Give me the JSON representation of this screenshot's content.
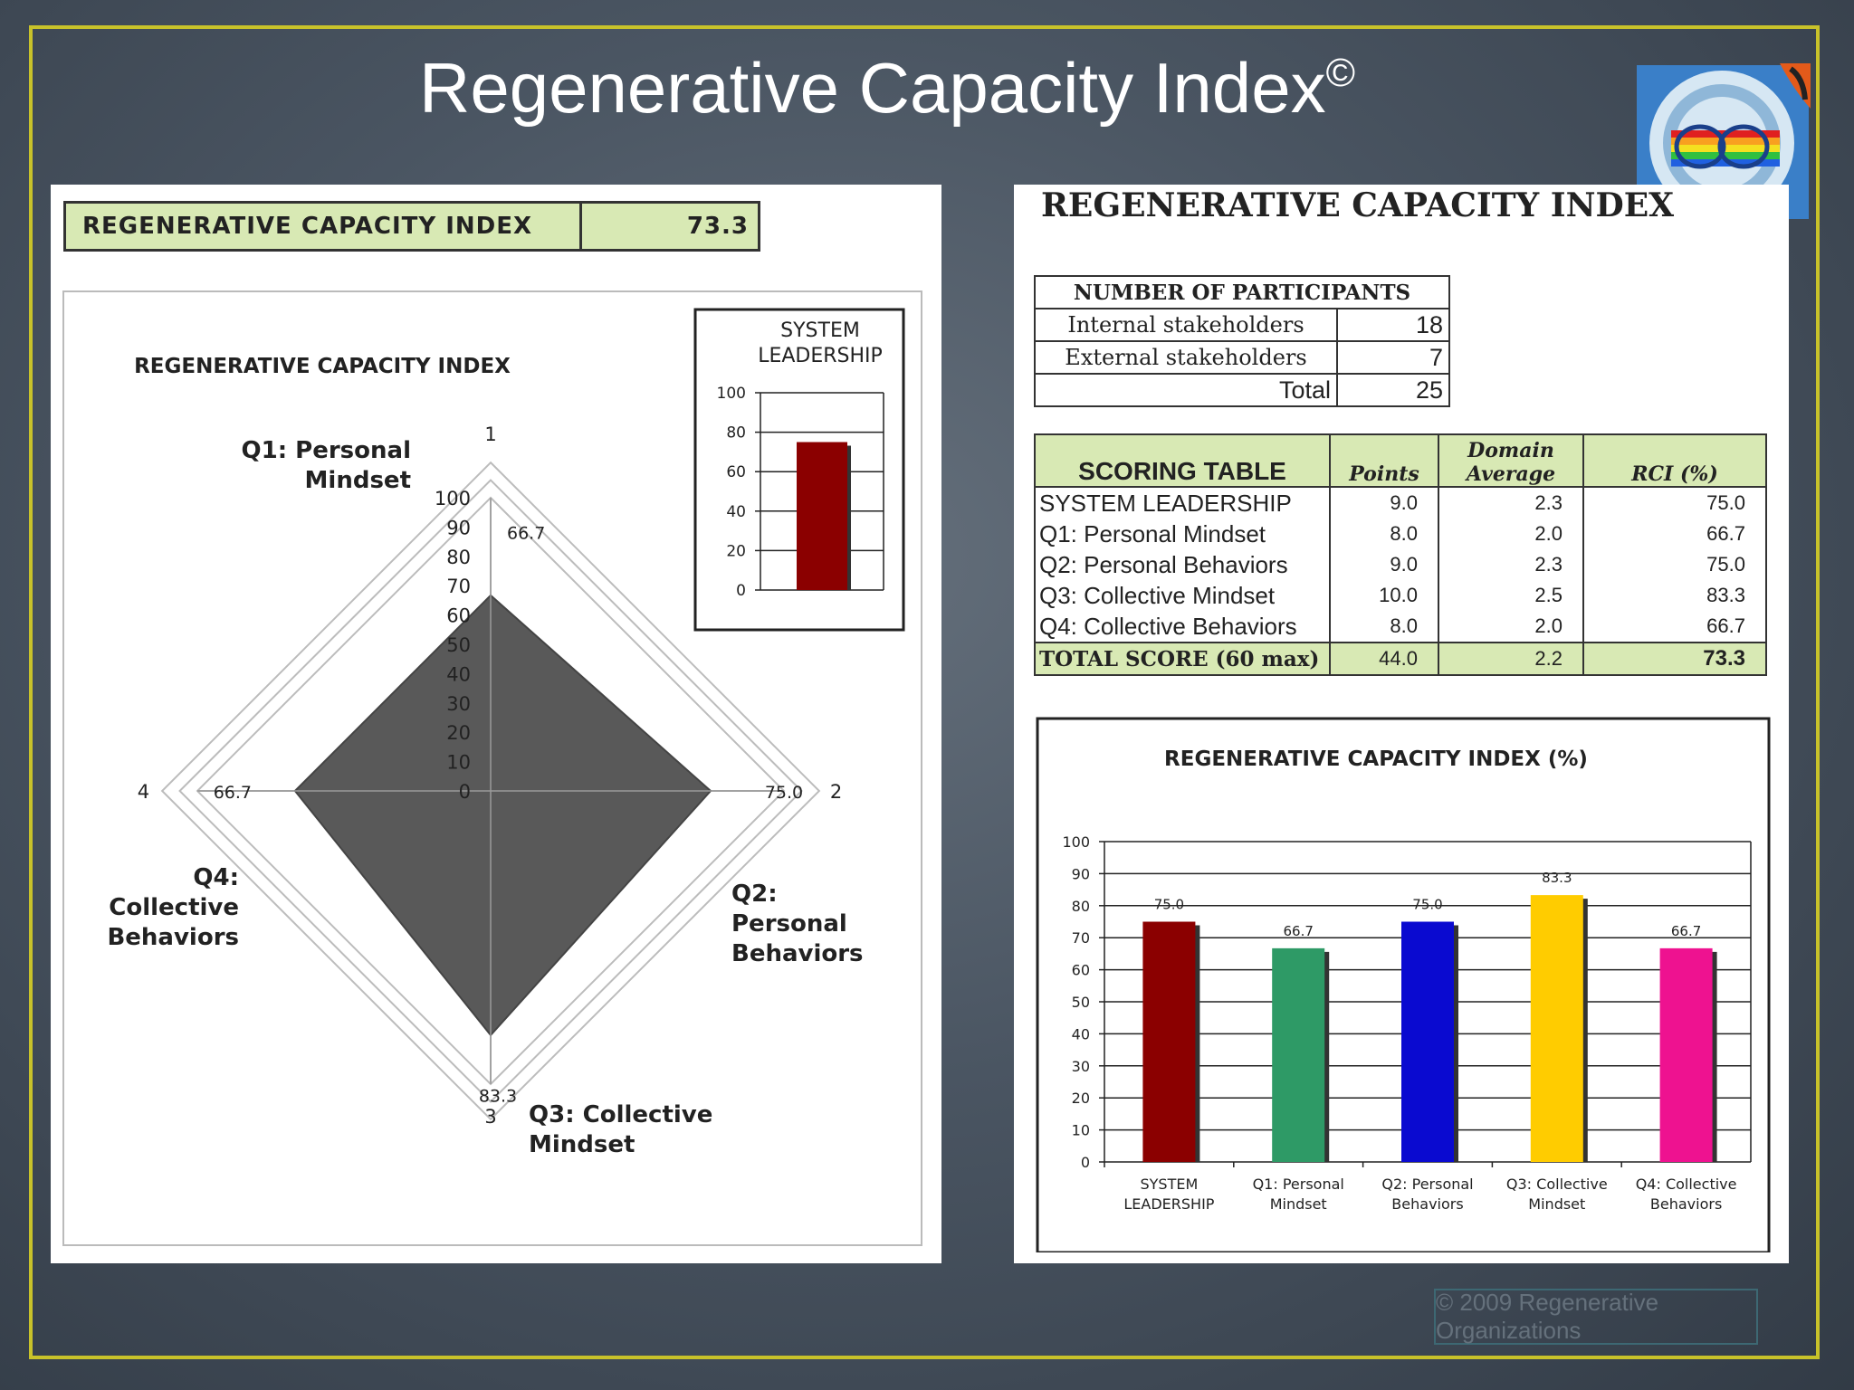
{
  "slide": {
    "title": "Regenerative Capacity Index",
    "title_mark": "©",
    "copyright": "© 2009 Regenerative Organizations",
    "frame_color": "#c8c22a"
  },
  "left_panel": {
    "index_label": "REGENERATIVE CAPACITY INDEX",
    "index_value": "73.3"
  },
  "right_panel": {
    "title": "REGENERATIVE CAPACITY INDEX",
    "participants": {
      "header": "NUMBER OF PARTICIPANTS",
      "rows": [
        {
          "label": "Internal stakeholders",
          "value": "18"
        },
        {
          "label": "External stakeholders",
          "value": "7"
        },
        {
          "label": "Total",
          "value": "25"
        }
      ]
    },
    "scoring": {
      "headers": [
        "SCORING TABLE",
        "Points",
        "Domain",
        "Average",
        "RCI (%)"
      ],
      "rows": [
        {
          "label": "SYSTEM LEADERSHIP",
          "points": "9.0",
          "avg": "2.3",
          "rci": "75.0"
        },
        {
          "label": "Q1: Personal Mindset",
          "points": "8.0",
          "avg": "2.0",
          "rci": "66.7"
        },
        {
          "label": "Q2: Personal Behaviors",
          "points": "9.0",
          "avg": "2.3",
          "rci": "75.0"
        },
        {
          "label": "Q3: Collective Mindset",
          "points": "10.0",
          "avg": "2.5",
          "rci": "83.3"
        },
        {
          "label": "Q4: Collective Behaviors",
          "points": "8.0",
          "avg": "2.0",
          "rci": "66.7"
        }
      ],
      "total": {
        "label": "TOTAL SCORE (60 max)",
        "points": "44.0",
        "avg": "2.2",
        "rci": "73.3"
      }
    }
  },
  "chart_data": [
    {
      "id": "radar",
      "type": "radar",
      "title": "REGENERATIVE CAPACITY INDEX",
      "axes": [
        "1",
        "2",
        "3",
        "4"
      ],
      "axis_labels": [
        [
          "Q1: Personal",
          "Mindset"
        ],
        [
          "Q2:",
          "Personal",
          "Behaviors"
        ],
        [
          "Q3: Collective",
          "Mindset"
        ],
        [
          "Q4:",
          "Collective",
          "Behaviors"
        ]
      ],
      "values": [
        66.7,
        75.0,
        83.3,
        66.7
      ],
      "value_labels": [
        "66.7",
        "75.0",
        "83.3",
        "66.7"
      ],
      "ticks": [
        "0",
        "10",
        "20",
        "30",
        "40",
        "50",
        "60",
        "70",
        "80",
        "90",
        "100"
      ],
      "ylim": [
        0,
        100
      ],
      "fill_color": "#595959"
    },
    {
      "id": "system_leadership",
      "type": "bar",
      "title": [
        "SYSTEM",
        "LEADERSHIP"
      ],
      "values": [
        75.0
      ],
      "yticks": [
        "100",
        "80",
        "60",
        "40",
        "20",
        "0"
      ],
      "ylim": [
        0,
        100
      ],
      "color": "#8b0000"
    },
    {
      "id": "rci_percent",
      "type": "bar",
      "title": "REGENERATIVE CAPACITY INDEX  (%)",
      "categories": [
        [
          "SYSTEM",
          "LEADERSHIP"
        ],
        [
          "Q1: Personal",
          "Mindset"
        ],
        [
          "Q2: Personal",
          "Behaviors"
        ],
        [
          "Q3: Collective",
          "Mindset"
        ],
        [
          "Q4: Collective",
          "Behaviors"
        ]
      ],
      "values": [
        75.0,
        66.7,
        75.0,
        83.3,
        66.7
      ],
      "data_labels": [
        "75.0",
        "66.7",
        "75.0",
        "83.3",
        "66.7"
      ],
      "colors": [
        "#8b0000",
        "#2e9a66",
        "#0a0ad0",
        "#ffcc00",
        "#ee1290"
      ],
      "yticks": [
        "0",
        "10",
        "20",
        "30",
        "40",
        "50",
        "60",
        "70",
        "80",
        "90",
        "100"
      ],
      "ylim": [
        0,
        100
      ],
      "grid": true
    }
  ]
}
